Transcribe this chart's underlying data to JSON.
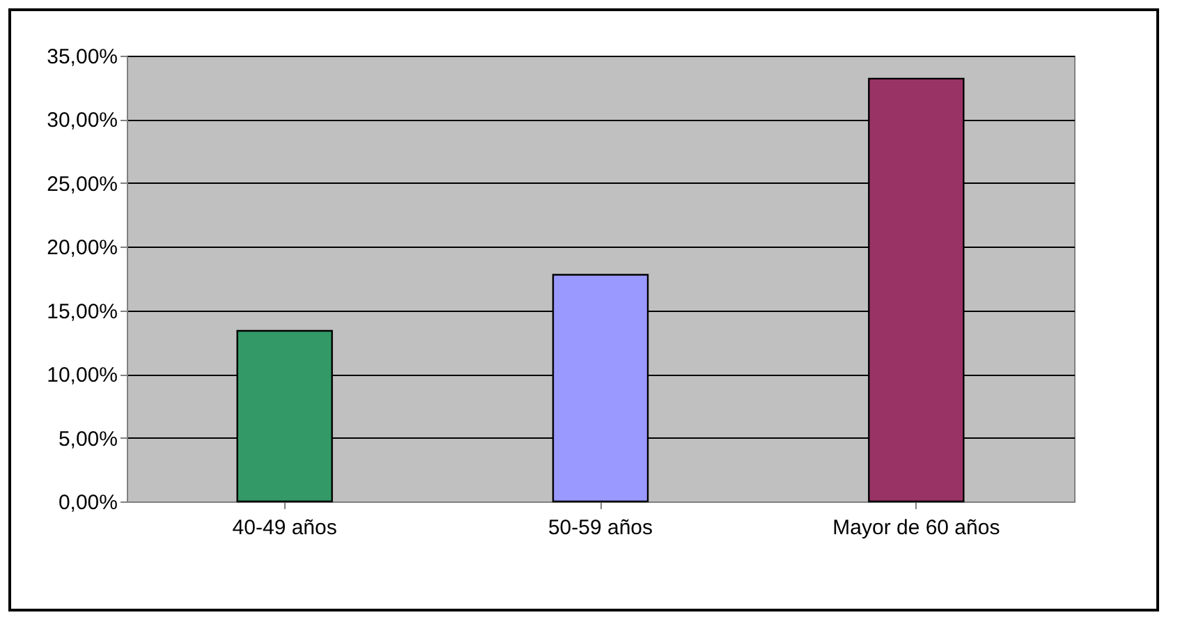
{
  "chart_data": {
    "type": "bar",
    "categories": [
      "40-49 años",
      "50-59 años",
      "Mayor de 60 años"
    ],
    "values": [
      13.4,
      17.8,
      33.2
    ],
    "colors": [
      "#339966",
      "#9999ff",
      "#993366"
    ],
    "ylim": [
      0,
      35
    ],
    "yticks": [
      {
        "value": 0,
        "label": "0,00%"
      },
      {
        "value": 5,
        "label": "5,00%"
      },
      {
        "value": 10,
        "label": "10,00%"
      },
      {
        "value": 15,
        "label": "15,00%"
      },
      {
        "value": 20,
        "label": "20,00%"
      },
      {
        "value": 25,
        "label": "25,00%"
      },
      {
        "value": 30,
        "label": "30,00%"
      },
      {
        "value": 35,
        "label": "35,00%"
      }
    ],
    "grid": "y"
  }
}
